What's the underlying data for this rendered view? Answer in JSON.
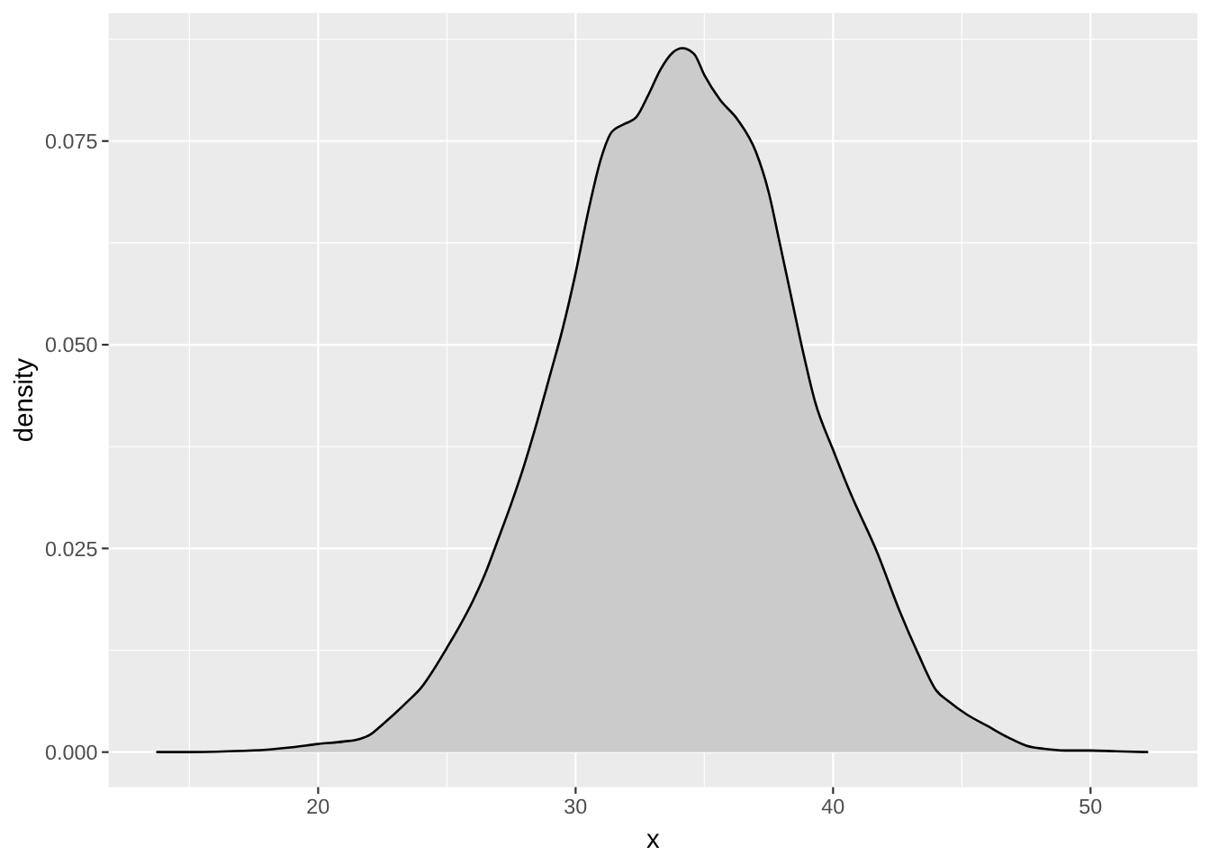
{
  "chart_data": {
    "type": "area",
    "xlabel": "x",
    "ylabel": "density",
    "x": [
      13.75,
      15,
      16.5,
      18,
      19,
      20,
      21,
      21.6,
      22,
      22.5,
      23,
      23.5,
      24,
      24.5,
      25,
      25.5,
      26,
      26.5,
      27,
      27.5,
      28,
      28.5,
      29,
      29.5,
      30,
      30.5,
      31,
      31.4,
      31.9,
      32.35,
      32.8,
      33.3,
      33.75,
      34.15,
      34.6,
      35,
      35.6,
      36.3,
      37,
      37.5,
      37.9,
      38.3,
      38.8,
      39.3,
      40,
      40.7,
      41.7,
      42.6,
      43.3,
      44,
      44.5,
      45.2,
      46,
      46.8,
      47.5,
      48.2,
      49,
      50,
      51,
      52.2
    ],
    "series": [
      {
        "color": "#cbcbcb",
        "values": [
          0,
          0,
          0.0001,
          0.0003,
          0.0006,
          0.001,
          0.0013,
          0.0016,
          0.0021,
          0.0034,
          0.0048,
          0.0063,
          0.0079,
          0.0102,
          0.0128,
          0.0155,
          0.0185,
          0.022,
          0.0262,
          0.0305,
          0.0352,
          0.0405,
          0.0462,
          0.052,
          0.0588,
          0.0665,
          0.073,
          0.0761,
          0.0771,
          0.0779,
          0.0805,
          0.0838,
          0.0858,
          0.0864,
          0.0857,
          0.0831,
          0.0801,
          0.0776,
          0.0737,
          0.0687,
          0.0629,
          0.057,
          0.0496,
          0.043,
          0.0371,
          0.0316,
          0.0246,
          0.0172,
          0.0121,
          0.0076,
          0.0062,
          0.0046,
          0.0032,
          0.0018,
          0.0008,
          0.0004,
          0.0002,
          0.0002,
          0.0001,
          0
        ]
      }
    ],
    "xlim": [
      11.86,
      54.15
    ],
    "xticks": [
      20,
      30,
      40,
      50
    ],
    "ylim": [
      -0.0043,
      0.0907
    ],
    "yticks": [
      {
        "value": 0,
        "label": "0.000"
      },
      {
        "value": 0.025,
        "label": "0.025"
      },
      {
        "value": 0.05,
        "label": "0.050"
      },
      {
        "value": 0.075,
        "label": "0.075"
      }
    ],
    "grid": true
  }
}
